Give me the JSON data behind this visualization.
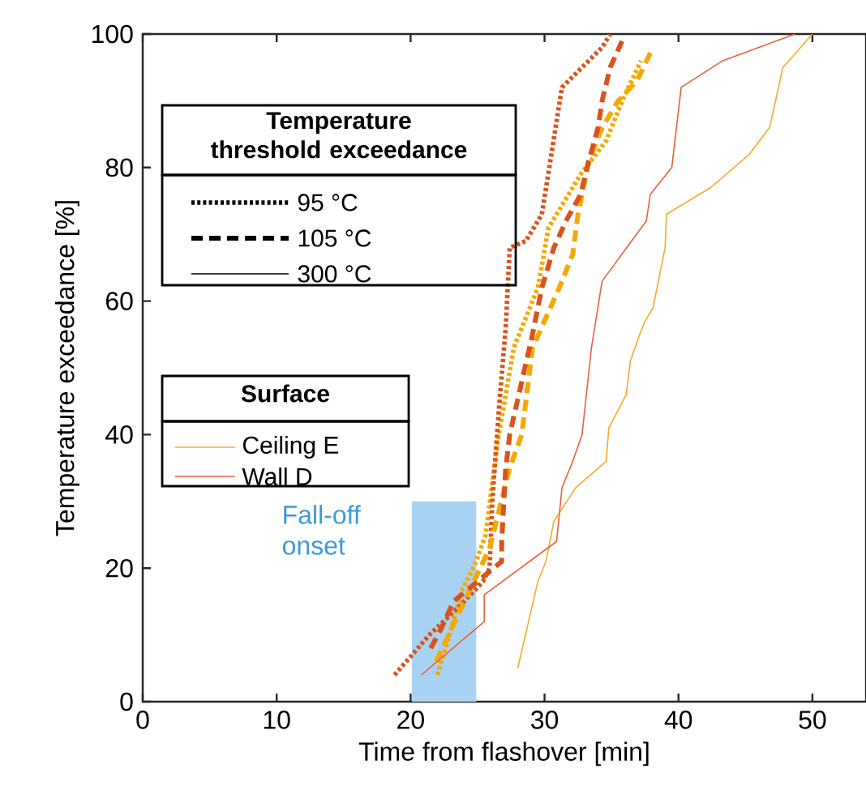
{
  "chart_data": {
    "type": "line",
    "xlabel": "Time from flashover [min]",
    "ylabel": "Temperature exceedance [%]",
    "xlim": [
      0,
      54
    ],
    "ylim": [
      0,
      100
    ],
    "xticks": [
      0,
      10,
      20,
      30,
      40,
      50
    ],
    "yticks": [
      0,
      20,
      40,
      60,
      80,
      100
    ],
    "legend_title": "Temperature threshold exceedance",
    "series": [
      {
        "type": "area",
        "color": "#a9d3f2",
        "x": [
          20.1,
          24.9
        ],
        "values": [
          30,
          30
        ]
      },
      {
        "color": "#f5a800",
        "line_style": "dotted",
        "x": [
          22.0,
          22.9,
          23.8,
          24.9,
          25.6,
          26.5,
          27.7,
          29.5,
          30.3,
          32.7,
          34.6,
          35.4,
          35.8,
          37.2
        ],
        "values": [
          4,
          10,
          16.5,
          21,
          25,
          39,
          53,
          62,
          71,
          79,
          84,
          88,
          90,
          96
        ]
      },
      {
        "color": "#d9531e",
        "line_style": "dotted",
        "x": [
          18.8,
          21.4,
          23.5,
          24.7,
          25.4,
          25.9,
          26.1,
          26.6,
          27.1,
          27.4,
          28.6,
          29.8,
          31.3,
          34.3,
          34.9
        ],
        "values": [
          4,
          10,
          14,
          16.5,
          18,
          20,
          30,
          44,
          56,
          68,
          69,
          73,
          92,
          98,
          100
        ]
      },
      {
        "color": "#f5a800",
        "line_style": "dashed",
        "x": [
          21.9,
          25.9,
          27.4,
          28.3,
          29.1,
          31.1,
          32.1,
          32.5,
          33.3,
          34.3,
          35.5,
          36.9,
          38.1
        ],
        "values": [
          6,
          23,
          35,
          40,
          53,
          62,
          67,
          73,
          81,
          86,
          90,
          93,
          98
        ]
      },
      {
        "color": "#d9531e",
        "line_style": "dashed",
        "x": [
          21.5,
          22.3,
          23.2,
          26.8,
          26.8,
          27.1,
          27.4,
          29.1,
          29.8,
          30.7,
          31.6,
          32.7,
          33.3,
          34.0,
          34.3,
          34.9,
          35.8
        ],
        "values": [
          8,
          11,
          15,
          21,
          24,
          35,
          40,
          55,
          62,
          68,
          72,
          76,
          81,
          86,
          90,
          95,
          99
        ]
      },
      {
        "color": "#f7a928",
        "line_style": "solid",
        "x": [
          28.0,
          29.5,
          30.1,
          30.7,
          32.3,
          34.6,
          34.8,
          36.1,
          36.4,
          37.1,
          37.5,
          38.1,
          39.0,
          39.1,
          42.4,
          45.3,
          46.8,
          47.8,
          50.0
        ],
        "values": [
          5,
          18,
          21,
          27,
          32,
          36,
          41,
          46,
          51,
          55,
          57,
          59,
          68,
          73,
          77,
          82,
          86,
          95,
          100
        ]
      },
      {
        "color": "#e8603c",
        "line_style": "solid",
        "x": [
          20.8,
          25.5,
          25.5,
          30.9,
          31.3,
          32.1,
          32.8,
          33.5,
          34.3,
          37.6,
          37.9,
          39.5,
          40.2,
          43.3,
          48.7
        ],
        "values": [
          4,
          12,
          16,
          24,
          32,
          36,
          40,
          53,
          63,
          72,
          76,
          80,
          92,
          96,
          100
        ]
      }
    ],
    "annotations": [
      "95 °C",
      "105 °C",
      "300 °C",
      "Surface",
      "Ceiling E",
      "Wall D",
      {
        "text": "Fall-off onset",
        "x": 20.1,
        "y": 30
      }
    ]
  }
}
